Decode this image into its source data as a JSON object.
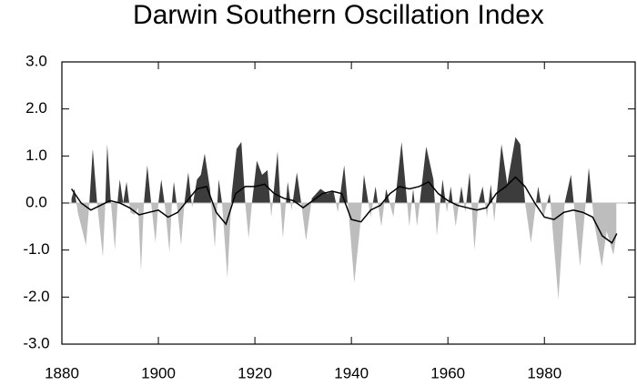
{
  "chart_data": {
    "type": "area",
    "title": "Darwin Southern Oscillation Index",
    "x": [
      1882,
      1882.6,
      1883.3,
      1885,
      1885.7,
      1886.4,
      1887.3,
      1888.5,
      1889,
      1889.4,
      1890.1,
      1891,
      1891.6,
      1892,
      1892.7,
      1893.4,
      1894.2,
      1895,
      1895.8,
      1896.4,
      1897,
      1897.7,
      1898.5,
      1899.4,
      1900,
      1900.6,
      1901.4,
      1902.3,
      1902.8,
      1903.2,
      1903.9,
      1904.7,
      1905.4,
      1906.2,
      1907,
      1908,
      1908.8,
      1909.6,
      1910.7,
      1911.7,
      1912.5,
      1913.2,
      1914.3,
      1915.2,
      1916.2,
      1917.2,
      1918,
      1918.7,
      1919.5,
      1920.4,
      1921.5,
      1922.6,
      1923.4,
      1924.7,
      1925.3,
      1925.8,
      1926.8,
      1927.6,
      1928.7,
      1929.6,
      1930.6,
      1931.8,
      1933.6,
      1935,
      1936.3,
      1937.2,
      1938.5,
      1939.5,
      1940.6,
      1941.8,
      1942.6,
      1944,
      1945,
      1946.2,
      1947.2,
      1948.7,
      1950.4,
      1952,
      1952.8,
      1953.6,
      1955.5,
      1957,
      1957.7,
      1958.9,
      1959.8,
      1960.6,
      1961.6,
      1962.8,
      1963.6,
      1964.5,
      1965.5,
      1966.3,
      1967.2,
      1968.1,
      1968.9,
      1969.6,
      1971.1,
      1972.3,
      1974,
      1975,
      1976,
      1977.2,
      1978.7,
      1979.8,
      1981.1,
      1982.9,
      1984.2,
      1985.5,
      1987.4,
      1989.2,
      1990.3,
      1991.9,
      1992.9,
      1994.3,
      1994.9
    ],
    "values": [
      0.1,
      0.3,
      -0.2,
      -0.9,
      0.0,
      1.15,
      0.0,
      -1.15,
      0.0,
      1.25,
      0.1,
      -1.0,
      0.1,
      0.5,
      0.0,
      0.45,
      -0.2,
      -0.25,
      -0.1,
      -1.45,
      0.0,
      0.8,
      0.0,
      -0.85,
      0.0,
      0.5,
      -0.1,
      -1.05,
      0.0,
      0.45,
      -0.1,
      -0.9,
      0.0,
      0.65,
      -0.1,
      0.5,
      0.6,
      1.05,
      0.3,
      -0.95,
      0.5,
      0.0,
      -1.6,
      0.2,
      1.15,
      1.3,
      0.0,
      -0.75,
      0.1,
      0.9,
      0.6,
      0.7,
      -0.3,
      1.1,
      0.0,
      -0.75,
      0.45,
      -0.15,
      0.65,
      0.0,
      -0.8,
      0.1,
      0.3,
      0.2,
      0.25,
      -0.2,
      0.8,
      -0.3,
      -1.7,
      -0.5,
      0.6,
      -0.3,
      0.35,
      -0.5,
      0.3,
      -0.3,
      1.3,
      -0.5,
      0.3,
      -0.5,
      1.2,
      0.5,
      -0.7,
      0.5,
      -0.2,
      0.35,
      -0.5,
      0.35,
      -0.2,
      0.65,
      -1.0,
      0.0,
      0.35,
      -0.3,
      0.4,
      -0.4,
      1.25,
      0.4,
      1.4,
      1.25,
      0.0,
      -0.85,
      0.35,
      -0.3,
      0.2,
      -2.05,
      0.0,
      0.6,
      -1.35,
      0.75,
      -0.4,
      -1.35,
      -0.6,
      -1.1,
      -0.7
    ],
    "above_color": "#3c3c3c",
    "below_color": "#bdbdbd",
    "trend": {
      "color": "#000000",
      "x": [
        1882,
        1884,
        1886,
        1888,
        1890,
        1892,
        1894,
        1896,
        1898,
        1900,
        1902,
        1904,
        1906,
        1908,
        1910,
        1912,
        1914,
        1916,
        1918,
        1920,
        1922,
        1924,
        1926,
        1928,
        1930,
        1932,
        1934,
        1936,
        1938,
        1940,
        1942,
        1944,
        1946,
        1948,
        1950,
        1952,
        1954,
        1956,
        1958,
        1960,
        1962,
        1964,
        1966,
        1968,
        1970,
        1972,
        1974,
        1976,
        1978,
        1980,
        1982,
        1984,
        1986,
        1988,
        1990,
        1992,
        1994,
        1995
      ],
      "values": [
        0.3,
        0.0,
        -0.15,
        -0.05,
        0.05,
        0.0,
        -0.1,
        -0.25,
        -0.2,
        -0.15,
        -0.3,
        -0.2,
        0.05,
        0.3,
        0.35,
        -0.2,
        -0.45,
        0.2,
        0.35,
        0.35,
        0.4,
        0.2,
        0.1,
        0.05,
        -0.1,
        0.05,
        0.2,
        0.25,
        0.2,
        -0.35,
        -0.4,
        -0.15,
        -0.05,
        0.2,
        0.35,
        0.3,
        0.35,
        0.45,
        0.2,
        0.05,
        -0.05,
        -0.1,
        -0.15,
        -0.1,
        0.2,
        0.35,
        0.55,
        0.35,
        0.0,
        -0.3,
        -0.35,
        -0.2,
        -0.15,
        -0.2,
        -0.3,
        -0.7,
        -0.85,
        -0.65
      ]
    },
    "xlim": [
      1880,
      1999
    ],
    "xticks": [
      1880,
      1900,
      1920,
      1940,
      1960,
      1980
    ],
    "ylim": [
      -3,
      3
    ],
    "yticks": [
      {
        "value": 3,
        "label": "3.0"
      },
      {
        "value": 2,
        "label": "2.0"
      },
      {
        "value": 1,
        "label": "1.0"
      },
      {
        "value": 0,
        "label": "0.0"
      },
      {
        "value": -1,
        "label": "-1.0"
      },
      {
        "value": -2,
        "label": "-2.0"
      },
      {
        "value": -3,
        "label": "-3.0"
      }
    ]
  }
}
